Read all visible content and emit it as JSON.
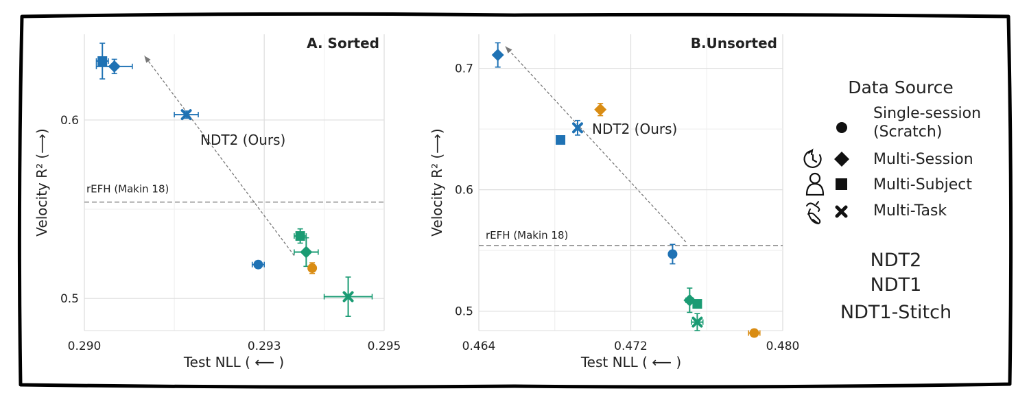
{
  "colors": {
    "NDT2": "#1f72b4",
    "NDT1": "#d98c13",
    "NDT1-Stitch": "#1a9b73",
    "reference_line": "#888888",
    "arrow": "#777777"
  },
  "chart_data": [
    {
      "type": "scatter",
      "title": "A.  Sorted",
      "xlabel": "Test NLL ( ⟵ )",
      "ylabel": "Velocity R² (⟶)",
      "xlim": [
        0.29,
        0.295
      ],
      "ylim": [
        0.482,
        0.648
      ],
      "x_ticks": [
        0.29,
        0.293,
        0.295
      ],
      "x_tick_labels": [
        "0.290",
        "0.293",
        "0.295"
      ],
      "y_ticks": [
        0.5,
        0.6
      ],
      "y_tick_labels": [
        "0.5",
        "0.6"
      ],
      "grid": true,
      "reference_line": {
        "label": "rEFH (Makin 18)",
        "y": 0.554
      },
      "annotation": {
        "text": "NDT2 (Ours)",
        "arrow_from": [
          0.2935,
          0.524
        ],
        "arrow_to": [
          0.291,
          0.636
        ]
      },
      "points": [
        {
          "model": "NDT2",
          "source": "Multi-Subject",
          "x": 0.2903,
          "y": 0.633,
          "x_err": 0.0001,
          "y_err": 0.01
        },
        {
          "model": "NDT2",
          "source": "Multi-Session",
          "x": 0.2905,
          "y": 0.63,
          "x_err": 0.0003,
          "y_err": 0.004
        },
        {
          "model": "NDT2",
          "source": "Multi-Task",
          "x": 0.2917,
          "y": 0.603,
          "x_err": 0.0002,
          "y_err": 0.002
        },
        {
          "model": "NDT2",
          "source": "Single-session (Scratch)",
          "x": 0.2929,
          "y": 0.519,
          "x_err": 0.0001,
          "y_err": 0.002
        },
        {
          "model": "NDT1-Stitch",
          "source": "Multi-Subject",
          "x": 0.2936,
          "y": 0.535,
          "x_err": 0.0001,
          "y_err": 0.004
        },
        {
          "model": "NDT1-Stitch",
          "source": "Multi-Session",
          "x": 0.2937,
          "y": 0.526,
          "x_err": 0.0002,
          "y_err": 0.008
        },
        {
          "model": "NDT1",
          "source": "Single-session (Scratch)",
          "x": 0.2938,
          "y": 0.517,
          "x_err": 5e-05,
          "y_err": 0.003
        },
        {
          "model": "NDT1-Stitch",
          "source": "Multi-Task",
          "x": 0.2944,
          "y": 0.501,
          "x_err": 0.0004,
          "y_err": 0.011
        }
      ]
    },
    {
      "type": "scatter",
      "title": "B.Unsorted",
      "xlabel": "Test NLL ( ⟵ )",
      "ylabel": "Velocity R² (⟶)",
      "xlim": [
        0.464,
        0.48
      ],
      "ylim": [
        0.484,
        0.728
      ],
      "x_ticks": [
        0.464,
        0.472,
        0.48
      ],
      "x_tick_labels": [
        "0.464",
        "0.472",
        "0.480"
      ],
      "y_ticks": [
        0.5,
        0.6,
        0.7
      ],
      "y_tick_labels": [
        "0.5",
        "0.6",
        "0.7"
      ],
      "grid": true,
      "reference_line": {
        "label": "rEFH (Makin 18)",
        "y": 0.554
      },
      "annotation": {
        "text": "NDT2 (Ours)",
        "arrow_from": [
          0.4749,
          0.557
        ],
        "arrow_to": [
          0.4654,
          0.718
        ]
      },
      "points": [
        {
          "model": "NDT2",
          "source": "Multi-Session",
          "x": 0.465,
          "y": 0.711,
          "x_err": 0.00015,
          "y_err": 0.01
        },
        {
          "model": "NDT1",
          "source": "Multi-Session",
          "x": 0.4704,
          "y": 0.666,
          "x_err": 0.0001,
          "y_err": 0.005
        },
        {
          "model": "NDT2",
          "source": "Multi-Task",
          "x": 0.4692,
          "y": 0.651,
          "x_err": 0.0001,
          "y_err": 0.006
        },
        {
          "model": "NDT2",
          "source": "Multi-Subject",
          "x": 0.4683,
          "y": 0.641,
          "x_err": 0.0,
          "y_err": 0.0
        },
        {
          "model": "NDT2",
          "source": "Single-session (Scratch)",
          "x": 0.4742,
          "y": 0.547,
          "x_err": 5e-05,
          "y_err": 0.008
        },
        {
          "model": "NDT1-Stitch",
          "source": "Multi-Session",
          "x": 0.4751,
          "y": 0.509,
          "x_err": 0.0002,
          "y_err": 0.01
        },
        {
          "model": "NDT1-Stitch",
          "source": "Multi-Subject",
          "x": 0.4755,
          "y": 0.506,
          "x_err": 0.0001,
          "y_err": 0.002
        },
        {
          "model": "NDT1-Stitch",
          "source": "Multi-Task",
          "x": 0.4755,
          "y": 0.491,
          "x_err": 0.0003,
          "y_err": 0.007
        },
        {
          "model": "NDT1",
          "source": "Single-session (Scratch)",
          "x": 0.4785,
          "y": 0.482,
          "x_err": 0.0003,
          "y_err": 0.001
        }
      ]
    }
  ],
  "legend": {
    "title": "Data Source",
    "entries": [
      {
        "marker": "circle",
        "label_lines": [
          "Single-session",
          "(Scratch)"
        ],
        "icon": ""
      },
      {
        "marker": "diamond",
        "label_lines": [
          "Multi-Session"
        ],
        "icon": "clock-person-icon"
      },
      {
        "marker": "square",
        "label_lines": [
          "Multi-Subject"
        ],
        "icon": "person-icon"
      },
      {
        "marker": "x",
        "label_lines": [
          "Multi-Task"
        ],
        "icon": "hands-icon"
      }
    ],
    "models": [
      {
        "label": "NDT2",
        "color": "#1f72b4"
      },
      {
        "label": "NDT1",
        "color": "#d98c13"
      },
      {
        "label": "NDT1-Stitch",
        "color": "#1a9b73"
      }
    ]
  }
}
